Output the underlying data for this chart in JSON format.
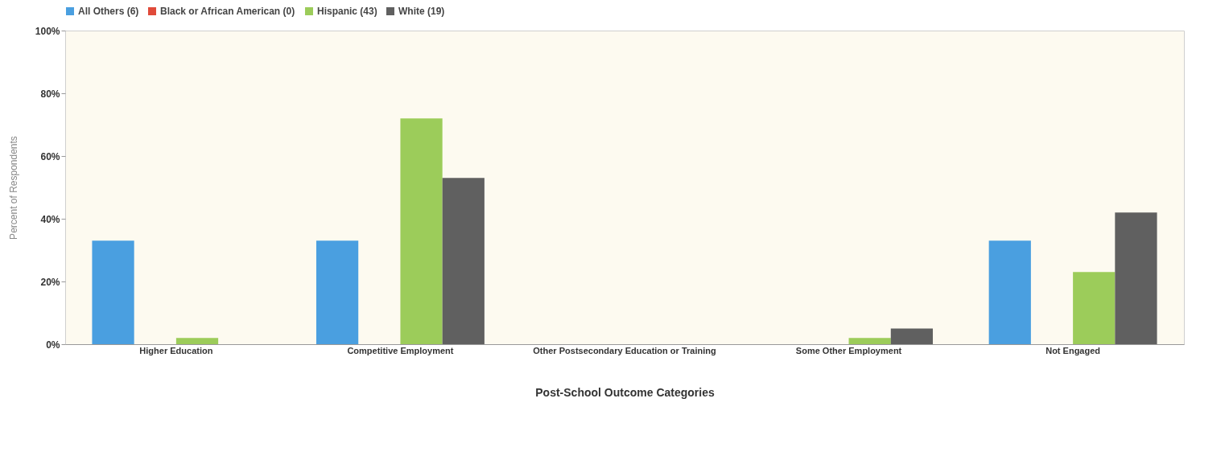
{
  "chart_data": {
    "type": "bar",
    "xlabel": "Post-School Outcome Categories",
    "ylabel": "Percent of Respondents",
    "categories": [
      "Higher Education",
      "Competitive Employment",
      "Other Postsecondary Education or Training",
      "Some Other Employment",
      "Not Engaged"
    ],
    "series": [
      {
        "name": "All Others (6)",
        "color": "#4a9fe0",
        "values": [
          33,
          33,
          0,
          0,
          33
        ]
      },
      {
        "name": "Black or African American (0)",
        "color": "#e04a3a",
        "values": [
          0,
          0,
          0,
          0,
          0
        ]
      },
      {
        "name": "Hispanic (43)",
        "color": "#9ccc5a",
        "values": [
          2,
          72,
          0,
          2,
          23
        ]
      },
      {
        "name": "White (19)",
        "color": "#606060",
        "values": [
          0,
          53,
          0,
          5,
          42
        ]
      }
    ],
    "ylim": [
      0,
      100
    ],
    "yticks": [
      {
        "value": 0,
        "label": "0%"
      },
      {
        "value": 20,
        "label": "20%"
      },
      {
        "value": 40,
        "label": "40%"
      },
      {
        "value": 60,
        "label": "60%"
      },
      {
        "value": 80,
        "label": "80%"
      },
      {
        "value": 100,
        "label": "100%"
      }
    ],
    "grid": false,
    "legend": "top"
  }
}
